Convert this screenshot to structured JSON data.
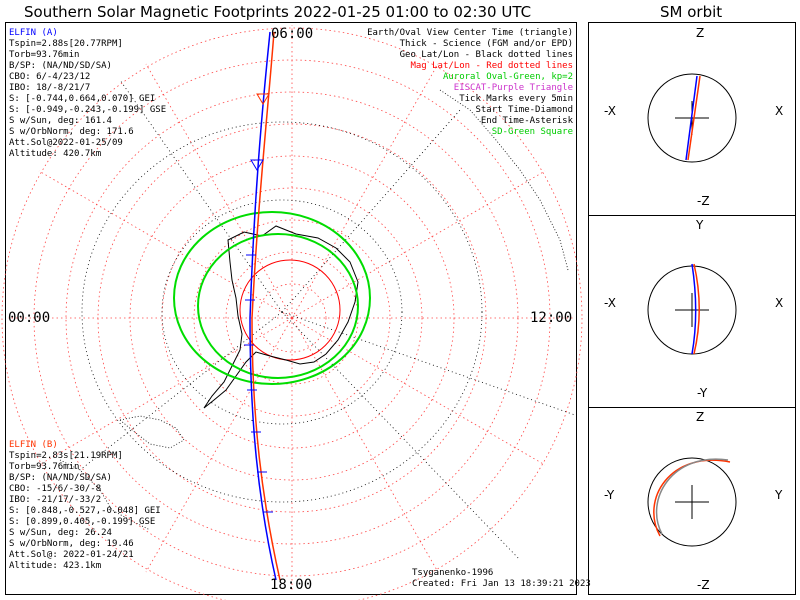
{
  "header": {
    "title": "Southern Solar Magnetic Footprints 2022-01-25 01:00 to 02:30 UTC",
    "orbit_title": "SM orbit"
  },
  "hour_labels": {
    "top": "06:00",
    "left": "00:00",
    "right": "12:00",
    "bottom": "18:00"
  },
  "elfin_a": {
    "title": "ELFIN (A)",
    "lines": [
      "Tspin=2.88s[20.77RPM]",
      "Torb=93.76min",
      "B/SP: (NA/ND/SD/SA)",
      "CBO: 6/-4/23/12",
      "IBO: 18/-8/21/7",
      "S: [-0.744,0.664,0.070] GEI",
      "S: [-0.949,-0.243,-0.199] GSE",
      "S w/Sun, deg: 161.4",
      "S w/OrbNorm, deg: 171.6",
      "Att.Sol@2022-01-25/09",
      "Altitude: 420.7km"
    ]
  },
  "elfin_b": {
    "title": "ELFIN (B)",
    "lines": [
      "Tspin=2.83s[21.19RPM]",
      "Torb=93.76min",
      "B/SP: (NA/ND/SD/SA)",
      "CBO: -15/6/-30/-8",
      "IBO: -21/17/-33/2",
      "S: [0.848,-0.527,-0.048] GEI",
      "S: [0.899,0.405,-0.199] GSE",
      "S w/Sun, deg: 26.24",
      "S w/OrbNorm, deg: 19.46",
      "Att.Sol@: 2022-01-24/21",
      "Altitude: 423.1km"
    ]
  },
  "legend": {
    "lines": [
      {
        "text": "Earth/Oval View Center Time (triangle)",
        "color": "#000000"
      },
      {
        "text": "Thick - Science (FGM and/or EPD)",
        "color": "#000000"
      },
      {
        "text": "Geo Lat/Lon - Black dotted lines",
        "color": "#000000"
      },
      {
        "text": "Mag Lat/Lon - Red dotted lines",
        "color": "#ff0000"
      },
      {
        "text": "Auroral Oval-Green, kp=2",
        "color": "#00cc00"
      },
      {
        "text": "EISCAT-Purple Triangle",
        "color": "#cc33cc"
      },
      {
        "text": "Tick Marks every 5min",
        "color": "#000000"
      },
      {
        "text": "Start Time-Diamond",
        "color": "#000000"
      },
      {
        "text": "End Time-Asterisk",
        "color": "#000000"
      },
      {
        "text": "SD-Green Square",
        "color": "#00cc00"
      }
    ]
  },
  "credits": {
    "model": "Tsyganenko-1996",
    "created": "Created: Fri Jan 13 18:39:21 2023"
  },
  "orbit_panels": [
    {
      "top": "Z",
      "bottom": "-Z",
      "left": "-X",
      "right": "X"
    },
    {
      "top": "Y",
      "bottom": "-Y",
      "left": "-X",
      "right": "X"
    },
    {
      "top": "Z",
      "bottom": "-Z",
      "left": "-Y",
      "right": "Y"
    }
  ],
  "colors": {
    "elfin_a": "#0000ff",
    "elfin_b": "#ff3300",
    "mag_grid": "#ff0000",
    "oval": "#00dd00",
    "eiscat": "#cc33cc"
  }
}
